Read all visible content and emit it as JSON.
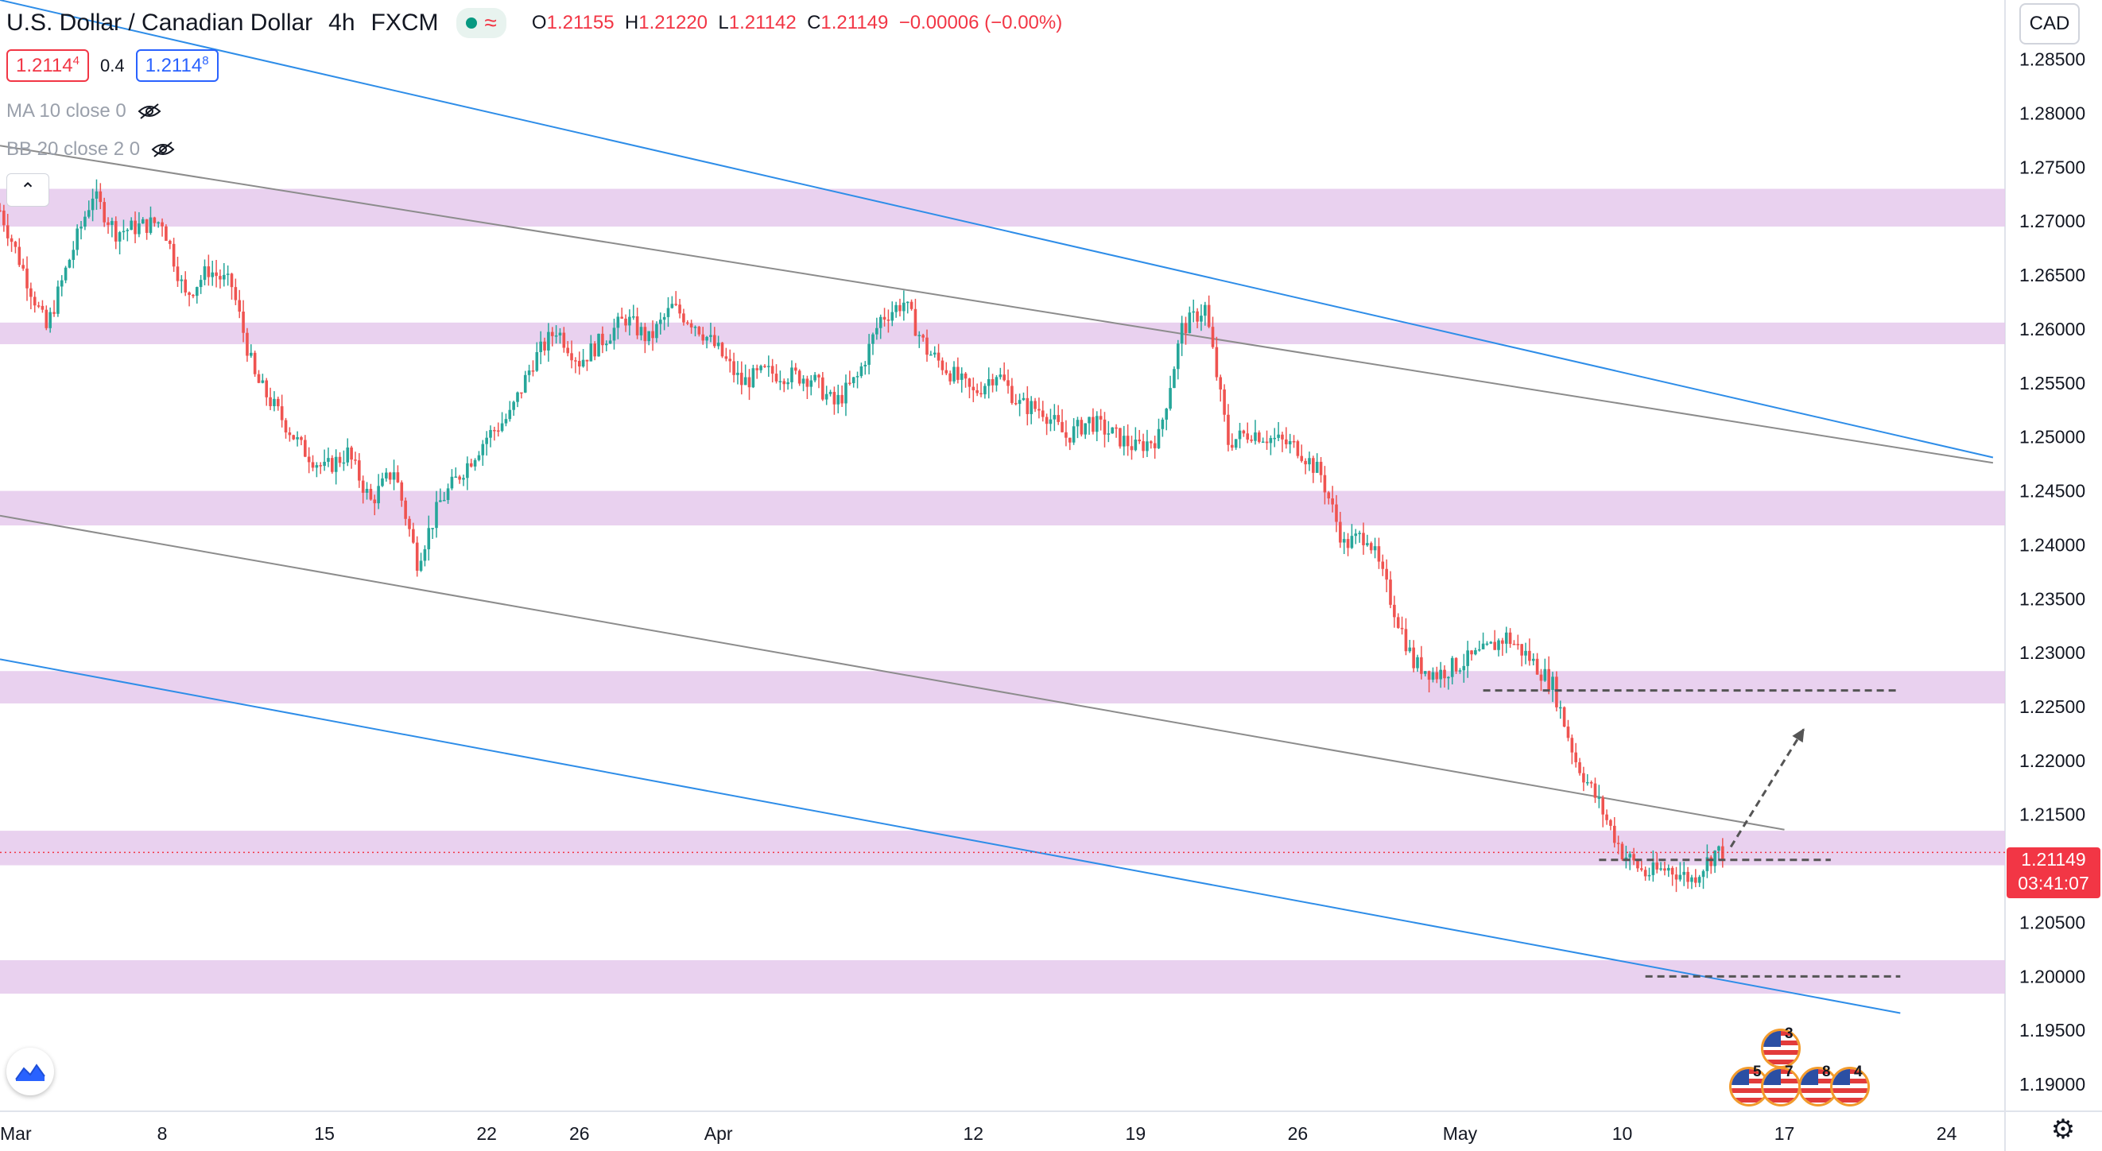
{
  "header": {
    "symbol": "U.S. Dollar / Canadian Dollar",
    "interval": "4h",
    "exchange": "FXCM",
    "ohlc": {
      "o_label": "O",
      "o": "1.21155",
      "h_label": "H",
      "h": "1.21220",
      "l_label": "L",
      "l": "1.21142",
      "c_label": "C",
      "c": "1.21149",
      "change": "−0.00006 (−0.00%)"
    },
    "sell_price": "1.2114",
    "sell_price_sup": "4",
    "spread": "0.4",
    "buy_price": "1.2114",
    "buy_price_sup": "8"
  },
  "indicators": [
    {
      "label": "MA 10 close 0"
    },
    {
      "label": "BB 20 close 2 0"
    }
  ],
  "currency": "CAD",
  "last_price": {
    "value": "1.21149",
    "countdown": "03:41:07"
  },
  "colors": {
    "up": "#26a69a",
    "down": "#ef5350",
    "zone": "#e5c9ec",
    "channel_blue": "#2e8de8",
    "channel_gray": "#8c8c8c",
    "dashed": "#555555"
  },
  "chart_data": {
    "type": "candlestick",
    "title": "U.S. Dollar / Canadian Dollar · 4h · FXCM",
    "y_ticks": [
      "1.19000",
      "1.19500",
      "1.20000",
      "1.20500",
      "1.21000",
      "1.21500",
      "1.22000",
      "1.22500",
      "1.23000",
      "1.23500",
      "1.24000",
      "1.24500",
      "1.25000",
      "1.25500",
      "1.26000",
      "1.26500",
      "1.27000",
      "1.27500",
      "1.28000",
      "1.28500"
    ],
    "ylim": [
      1.1875,
      1.2905
    ],
    "x_labels": [
      {
        "label": "Mar",
        "date": "2021-03-01"
      },
      {
        "label": "8",
        "date": "2021-03-08"
      },
      {
        "label": "15",
        "date": "2021-03-15"
      },
      {
        "label": "22",
        "date": "2021-03-22"
      },
      {
        "label": "26",
        "date": "2021-03-26"
      },
      {
        "label": "Apr",
        "date": "2021-04-01"
      },
      {
        "label": "12",
        "date": "2021-04-12"
      },
      {
        "label": "19",
        "date": "2021-04-19"
      },
      {
        "label": "26",
        "date": "2021-04-26"
      },
      {
        "label": "May",
        "date": "2021-05-03"
      },
      {
        "label": "10",
        "date": "2021-05-10"
      },
      {
        "label": "17",
        "date": "2021-05-17"
      },
      {
        "label": "24",
        "date": "2021-05-24"
      }
    ],
    "price_path": [
      [
        "2021-03-01",
        1.271
      ],
      [
        "2021-03-02",
        1.2655
      ],
      [
        "2021-03-03",
        1.26
      ],
      [
        "2021-03-04",
        1.2665
      ],
      [
        "2021-03-05",
        1.2725
      ],
      [
        "2021-03-06",
        1.269
      ],
      [
        "2021-03-08",
        1.27
      ],
      [
        "2021-03-09",
        1.263
      ],
      [
        "2021-03-10",
        1.2655
      ],
      [
        "2021-03-11",
        1.264
      ],
      [
        "2021-03-12",
        1.2555
      ],
      [
        "2021-03-14",
        1.249
      ],
      [
        "2021-03-15",
        1.247
      ],
      [
        "2021-03-16",
        1.2485
      ],
      [
        "2021-03-17",
        1.244
      ],
      [
        "2021-03-18",
        1.247
      ],
      [
        "2021-03-19",
        1.2385
      ],
      [
        "2021-03-20",
        1.244
      ],
      [
        "2021-03-22",
        1.25
      ],
      [
        "2021-03-23",
        1.252
      ],
      [
        "2021-03-24",
        1.257
      ],
      [
        "2021-03-25",
        1.26
      ],
      [
        "2021-03-26",
        1.257
      ],
      [
        "2021-03-28",
        1.261
      ],
      [
        "2021-03-29",
        1.259
      ],
      [
        "2021-03-30",
        1.262
      ],
      [
        "2021-03-31",
        1.2605
      ],
      [
        "2021-04-01",
        1.258
      ],
      [
        "2021-04-02",
        1.255
      ],
      [
        "2021-04-03",
        1.256
      ],
      [
        "2021-04-05",
        1.2555
      ],
      [
        "2021-04-06",
        1.253
      ],
      [
        "2021-04-07",
        1.2555
      ],
      [
        "2021-04-08",
        1.261
      ],
      [
        "2021-04-09",
        1.2625
      ],
      [
        "2021-04-10",
        1.258
      ],
      [
        "2021-04-12",
        1.254
      ],
      [
        "2021-04-13",
        1.256
      ],
      [
        "2021-04-14",
        1.253
      ],
      [
        "2021-04-15",
        1.2525
      ],
      [
        "2021-04-16",
        1.25
      ],
      [
        "2021-04-17",
        1.2515
      ],
      [
        "2021-04-19",
        1.249
      ],
      [
        "2021-04-20",
        1.25
      ],
      [
        "2021-04-21",
        1.26
      ],
      [
        "2021-04-22",
        1.262
      ],
      [
        "2021-04-23",
        1.2495
      ],
      [
        "2021-04-24",
        1.2505
      ],
      [
        "2021-04-26",
        1.249
      ],
      [
        "2021-04-27",
        1.2465
      ],
      [
        "2021-04-28",
        1.24
      ],
      [
        "2021-04-29",
        1.241
      ],
      [
        "2021-04-30",
        1.235
      ],
      [
        "2021-05-01",
        1.229
      ],
      [
        "2021-05-02",
        1.228
      ],
      [
        "2021-05-03",
        1.229
      ],
      [
        "2021-05-04",
        1.23
      ],
      [
        "2021-05-05",
        1.2315
      ],
      [
        "2021-05-06",
        1.2295
      ],
      [
        "2021-05-07",
        1.227
      ],
      [
        "2021-05-08",
        1.22
      ],
      [
        "2021-05-09",
        1.216
      ],
      [
        "2021-05-10",
        1.2115
      ],
      [
        "2021-05-11",
        1.2095
      ],
      [
        "2021-05-12",
        1.21
      ],
      [
        "2021-05-13",
        1.209
      ],
      [
        "2021-05-14",
        1.2115
      ]
    ],
    "annotations": {
      "zones": [
        [
          1.2695,
          1.273
        ],
        [
          1.2586,
          1.2606
        ],
        [
          1.2418,
          1.245
        ],
        [
          1.2253,
          1.2283
        ],
        [
          1.2103,
          1.2135
        ],
        [
          1.1984,
          1.2015
        ]
      ],
      "dashed_levels": [
        {
          "y": 1.2265,
          "from": "2021-05-04",
          "to": "2021-05-22"
        },
        {
          "y": 1.2108,
          "from": "2021-05-09",
          "to": "2021-05-19"
        },
        {
          "y": 1.2,
          "from": "2021-05-11",
          "to": "2021-05-22"
        }
      ],
      "lines": [
        {
          "name": "upper-blue",
          "color": "blue",
          "p1": [
            "2021-03-01",
            1.2905
          ],
          "p2": [
            "2021-05-26",
            1.2481
          ]
        },
        {
          "name": "upper-gray",
          "color": "gray",
          "p1": [
            "2021-03-01",
            1.277
          ],
          "p2": [
            "2021-05-26",
            1.2476
          ]
        },
        {
          "name": "mid-gray",
          "color": "gray",
          "p1": [
            "2021-03-01",
            1.2427
          ],
          "p2": [
            "2021-05-17",
            1.2136
          ]
        },
        {
          "name": "lower-blue",
          "color": "blue",
          "p1": [
            "2021-03-01",
            1.2294
          ],
          "p2": [
            "2021-05-22",
            1.1966
          ]
        }
      ],
      "arrow": {
        "from": [
          "2021-05-14",
          1.212
        ],
        "to": [
          "2021-05-17",
          1.223
        ]
      }
    },
    "events": [
      {
        "count": "3",
        "date": "2021-05-14"
      },
      {
        "count": "5",
        "date": "2021-05-13"
      },
      {
        "count": "7",
        "date": "2021-05-14"
      },
      {
        "count": "8",
        "date": "2021-05-15"
      },
      {
        "count": "4",
        "date": "2021-05-16"
      }
    ]
  }
}
